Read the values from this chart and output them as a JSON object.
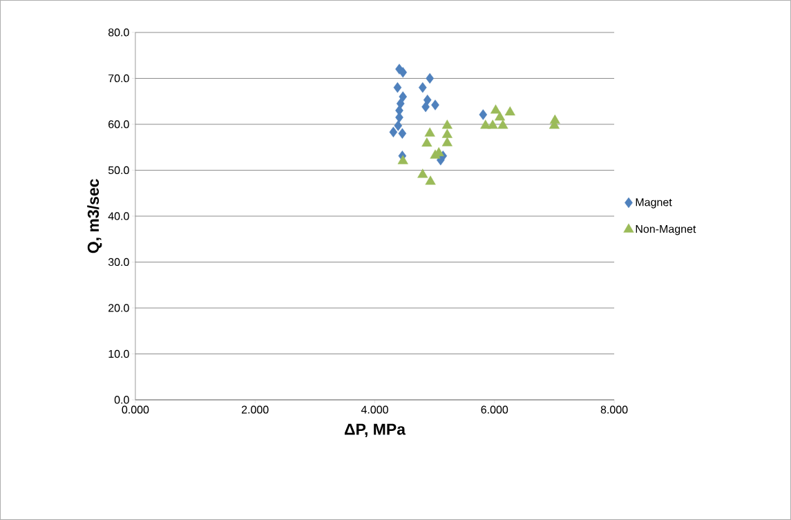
{
  "chart_data": {
    "type": "scatter",
    "xlabel": "ΔP, MPa",
    "ylabel": "Q, m3/sec",
    "xlim": [
      0,
      8
    ],
    "ylim": [
      0,
      80
    ],
    "xticks": [
      {
        "value": 0,
        "label": "0.000"
      },
      {
        "value": 2,
        "label": "2.000"
      },
      {
        "value": 4,
        "label": "4.000"
      },
      {
        "value": 6,
        "label": "6.000"
      },
      {
        "value": 8,
        "label": "8.000"
      }
    ],
    "yticks": [
      {
        "value": 0,
        "label": "0.0"
      },
      {
        "value": 10,
        "label": "10.0"
      },
      {
        "value": 20,
        "label": "20.0"
      },
      {
        "value": 30,
        "label": "30.0"
      },
      {
        "value": 40,
        "label": "40.0"
      },
      {
        "value": 50,
        "label": "50.0"
      },
      {
        "value": 60,
        "label": "60.0"
      },
      {
        "value": 70,
        "label": "70.0"
      },
      {
        "value": 80,
        "label": "80.0"
      }
    ],
    "grid": "y",
    "legend": "right",
    "series": [
      {
        "name": "Magnet",
        "color": "#4f81bd",
        "marker": "diamond",
        "x": [
          4.41,
          4.47,
          4.92,
          4.38,
          4.8,
          4.47,
          4.43,
          4.41,
          4.88,
          4.85,
          5.01,
          4.41,
          4.39,
          4.31,
          4.46,
          4.46,
          5.1,
          5.14,
          5.81
        ],
        "values": [
          72,
          71.3,
          70,
          68,
          68,
          66,
          64.5,
          63,
          65.3,
          63.8,
          64.2,
          61.5,
          59.7,
          58.3,
          58,
          53.1,
          52.2,
          53.1,
          62.1
        ]
      },
      {
        "name": "Non-Magnet",
        "color": "#9bbb59",
        "marker": "triangle",
        "x": [
          4.92,
          4.87,
          5.21,
          5.21,
          5.21,
          5.01,
          5.07,
          4.8,
          4.93,
          4.47,
          6.02,
          5.85,
          6.09,
          6.14,
          6.26,
          7.01,
          7.0,
          5.97
        ],
        "values": [
          58,
          55.8,
          59.7,
          57.7,
          55.9,
          53.2,
          53.7,
          49,
          47.5,
          52,
          63,
          59.7,
          61.5,
          59.7,
          62.6,
          60.8,
          59.7,
          59.7
        ]
      }
    ]
  }
}
